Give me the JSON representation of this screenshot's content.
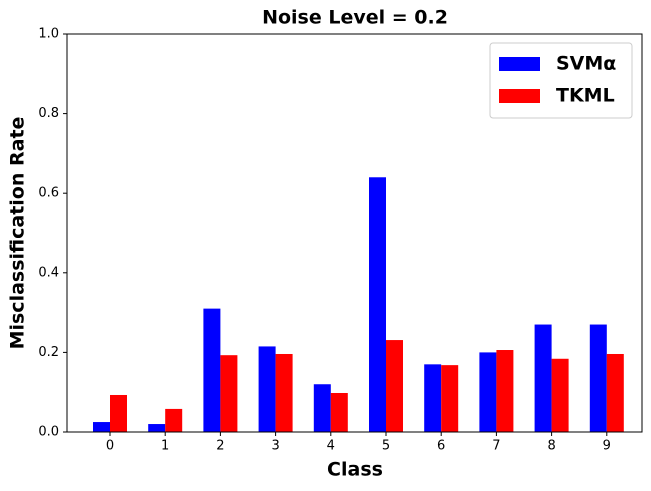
{
  "chart_data": {
    "type": "bar",
    "title": "Noise Level = 0.2",
    "x_label": "Class",
    "y_label": "Misclassification Rate",
    "categories": [
      "0",
      "1",
      "2",
      "3",
      "4",
      "5",
      "6",
      "7",
      "8",
      "9"
    ],
    "series": [
      {
        "name": "SVMα",
        "color": "#0000ff",
        "values": [
          0.025,
          0.02,
          0.31,
          0.215,
          0.12,
          0.64,
          0.17,
          0.2,
          0.27,
          0.27
        ]
      },
      {
        "name": "TKML",
        "color": "#ff0000",
        "values": [
          0.093,
          0.058,
          0.193,
          0.196,
          0.098,
          0.231,
          0.168,
          0.206,
          0.184,
          0.196
        ]
      }
    ],
    "ylim": [
      0,
      1
    ],
    "yticks": [
      {
        "value": 0,
        "label": "0.0"
      },
      0.2,
      0.4,
      0.6,
      0.8,
      {
        "value": 1,
        "label": "1.0"
      }
    ],
    "legend": "upper right"
  }
}
